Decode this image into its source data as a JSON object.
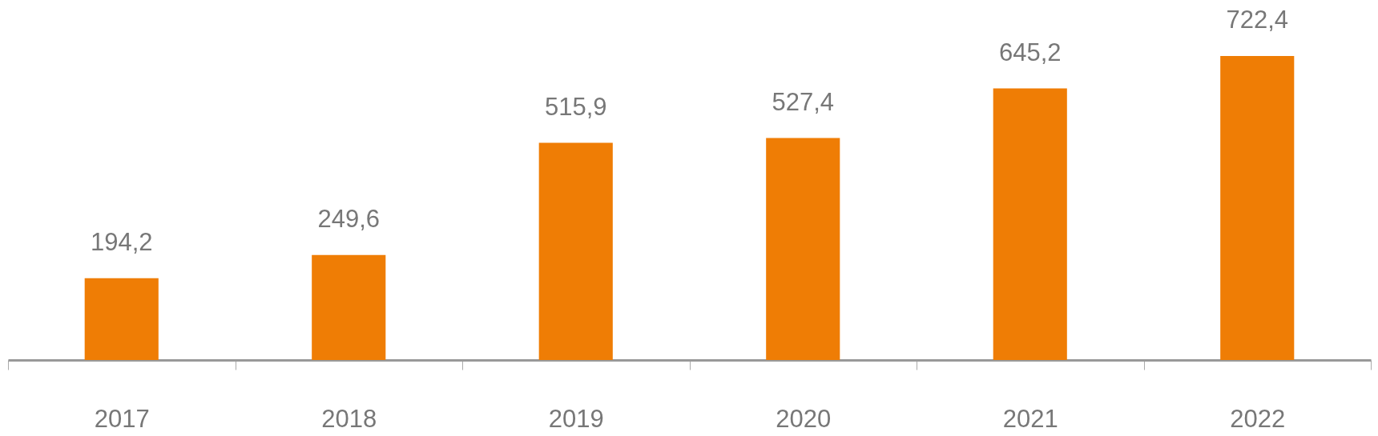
{
  "chart_data": {
    "type": "bar",
    "categories": [
      "2017",
      "2018",
      "2019",
      "2020",
      "2021",
      "2022"
    ],
    "values": [
      194.2,
      249.6,
      515.9,
      527.4,
      645.2,
      722.4
    ],
    "value_labels": [
      "194,2",
      "249,6",
      "515,9",
      "527,4",
      "645,2",
      "722,4"
    ],
    "color": "#ef7d05",
    "tick_labels": "x"
  }
}
